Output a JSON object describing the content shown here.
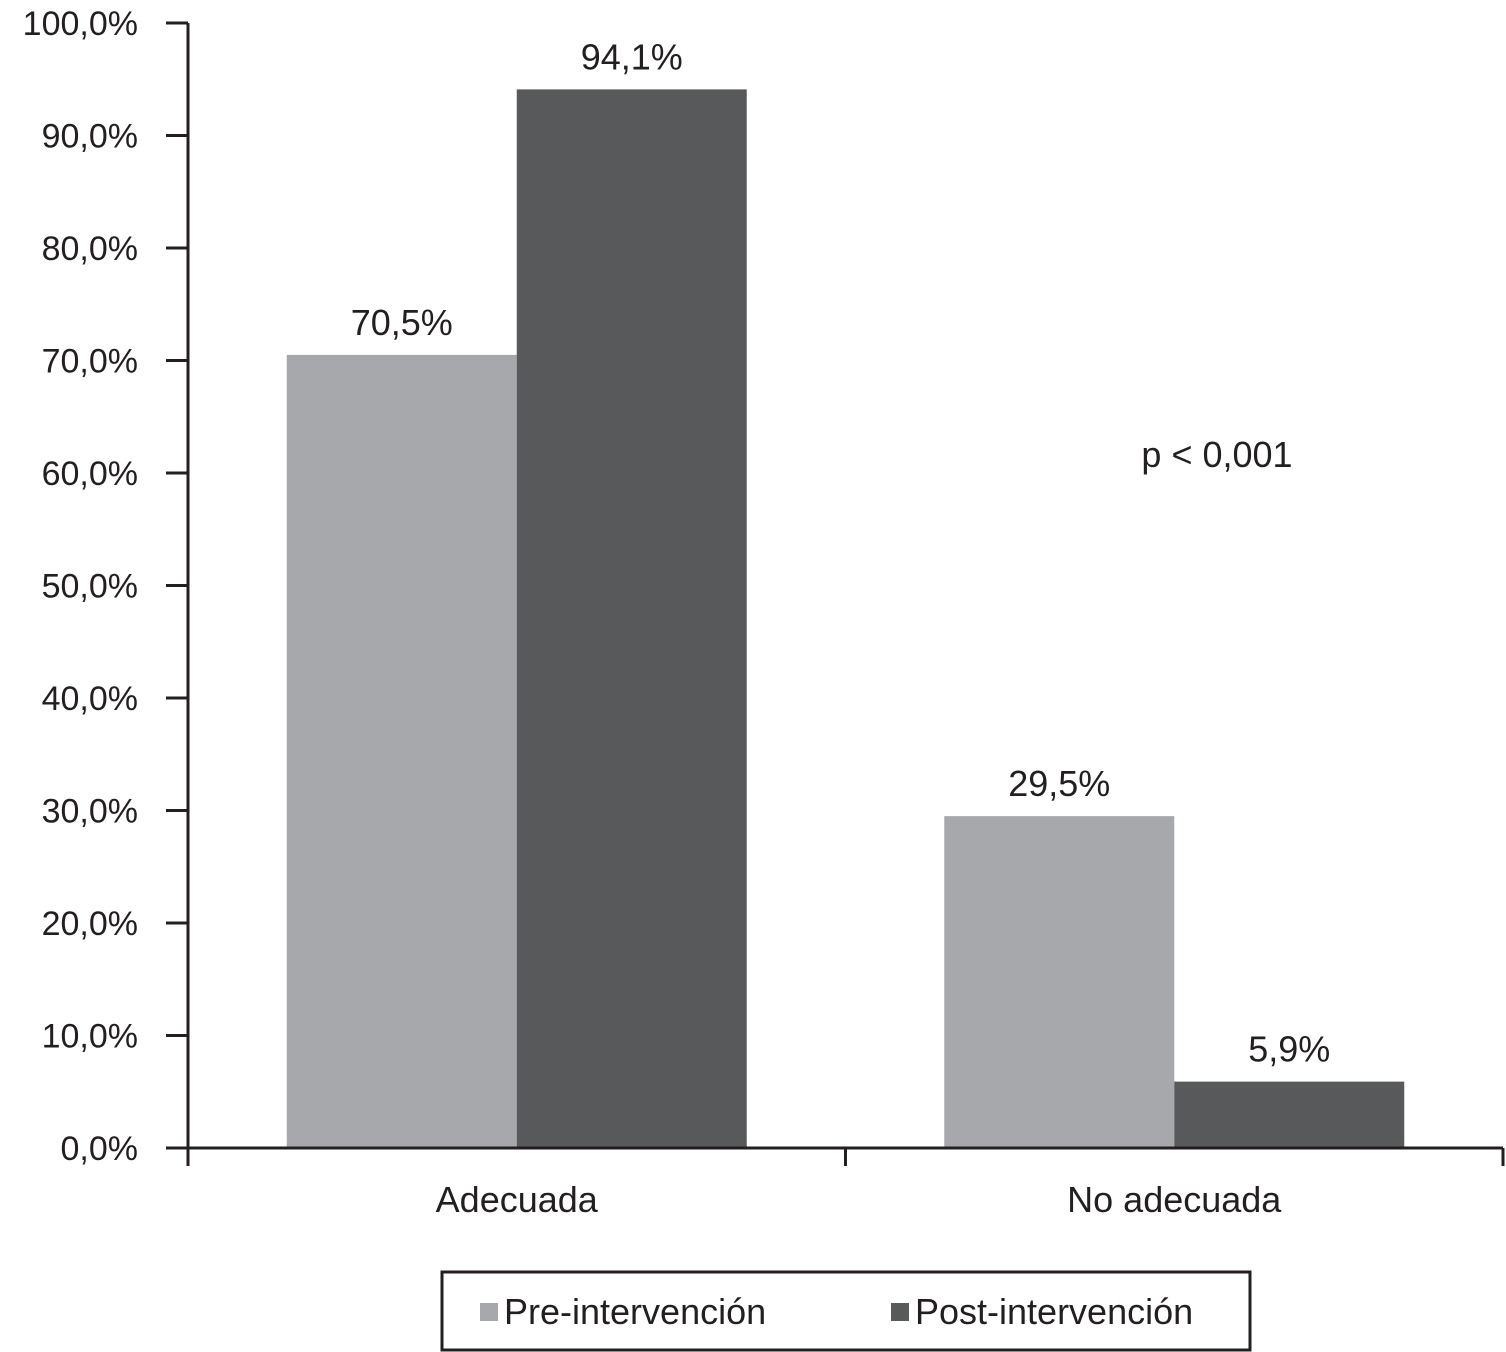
{
  "chart_data": {
    "type": "bar",
    "categories": [
      "Adecuada",
      "No adecuada"
    ],
    "series": [
      {
        "name": "Pre-intervención",
        "values": [
          70.5,
          29.5
        ],
        "labels": [
          "70,5%",
          "29,5%"
        ],
        "color": "#a7a8ab"
      },
      {
        "name": "Post-intervención",
        "values": [
          94.1,
          5.9
        ],
        "labels": [
          "94,1%",
          "5,9%"
        ],
        "color": "#58595b"
      }
    ],
    "ylim": [
      0,
      100
    ],
    "yticks": [
      0,
      10,
      20,
      30,
      40,
      50,
      60,
      70,
      80,
      90,
      100
    ],
    "ytick_labels": [
      "0,0%",
      "10,0%",
      "20,0%",
      "30,0%",
      "40,0%",
      "50,0%",
      "60,0%",
      "70,0%",
      "80,0%",
      "90,0%",
      "100,0%"
    ],
    "annotation": "p < 0,001",
    "legend_position": "bottom",
    "grid": false,
    "axis_color": "#231f20"
  }
}
